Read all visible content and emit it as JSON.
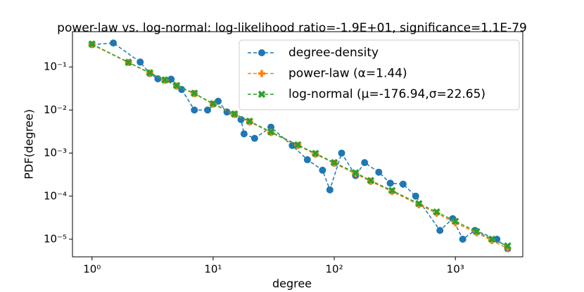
{
  "chart_data": {
    "type": "line",
    "title": "power-law vs. log-normal: log-likelihood ratio=-1.9E+01, significance=1.1E-79",
    "x_label": "degree",
    "y_label": "PDF(degree)",
    "log_x": true,
    "log_y": true,
    "xlim": [
      0.69,
      3600
    ],
    "ylim": [
      3.9e-06,
      0.66
    ],
    "xticks": [
      {
        "value": 1,
        "label": "10⁰"
      },
      {
        "value": 10,
        "label": "10¹"
      },
      {
        "value": 100,
        "label": "10²"
      },
      {
        "value": 1000,
        "label": "10³"
      }
    ],
    "yticks": [
      {
        "value": 1e-05,
        "label": "10⁻⁵"
      },
      {
        "value": 0.0001,
        "label": "10⁻⁴"
      },
      {
        "value": 0.001,
        "label": "10⁻³"
      },
      {
        "value": 0.01,
        "label": "10⁻²"
      },
      {
        "value": 0.1,
        "label": "10⁻¹"
      }
    ],
    "legend": "upper right",
    "series": [
      {
        "name": "degree-density",
        "color": "#1f77b4",
        "marker": "circle",
        "x": [
          1,
          1.5,
          2.5,
          3,
          3.5,
          4.5,
          5.5,
          7,
          9,
          11,
          13,
          17,
          18,
          22,
          30,
          45,
          60,
          80,
          92,
          115,
          150,
          178,
          233,
          290,
          370,
          470,
          745,
          950,
          1150,
          1450,
          2200,
          2700
        ],
        "values": [
          0.33,
          0.36,
          0.13,
          0.07,
          0.053,
          0.052,
          0.03,
          0.01,
          0.01,
          0.016,
          0.009,
          0.006,
          0.0028,
          0.0022,
          0.004,
          0.0015,
          0.0007,
          0.0004,
          0.00014,
          0.001,
          0.0003,
          0.0006,
          0.00036,
          0.0002,
          0.00019,
          0.0001,
          1.6e-05,
          3e-05,
          1e-05,
          1.6e-05,
          1e-05,
          6e-06
        ]
      },
      {
        "name": "power-law (α=1.44)",
        "color": "#ff7f0e",
        "marker": "plus",
        "x": [
          1,
          2,
          3,
          4,
          5,
          7,
          10,
          15,
          20,
          30,
          50,
          70,
          100,
          150,
          200,
          300,
          500,
          700,
          1000,
          1500,
          2000,
          2700
        ],
        "values": [
          0.33,
          0.127,
          0.072,
          0.049,
          0.036,
          0.024,
          0.0137,
          0.0079,
          0.0053,
          0.003,
          0.0015,
          0.00094,
          0.00058,
          0.00033,
          0.00022,
          0.000128,
          6.3e-05,
          4e-05,
          2.4e-05,
          1.4e-05,
          9.3e-06,
          6.1e-06
        ]
      },
      {
        "name": "log-normal (μ=-176.94,σ=22.65)",
        "color": "#2ca02c",
        "marker": "x",
        "x": [
          1,
          2,
          3,
          4,
          5,
          7,
          10,
          15,
          20,
          30,
          50,
          70,
          100,
          150,
          200,
          300,
          500,
          700,
          1000,
          1500,
          2000,
          2700
        ],
        "values": [
          0.34,
          0.128,
          0.073,
          0.05,
          0.037,
          0.0245,
          0.014,
          0.0081,
          0.0055,
          0.0031,
          0.00155,
          0.00098,
          0.0006,
          0.00035,
          0.00023,
          0.000135,
          6.7e-05,
          4.3e-05,
          2.6e-05,
          1.5e-05,
          1e-05,
          7e-06
        ]
      }
    ]
  }
}
